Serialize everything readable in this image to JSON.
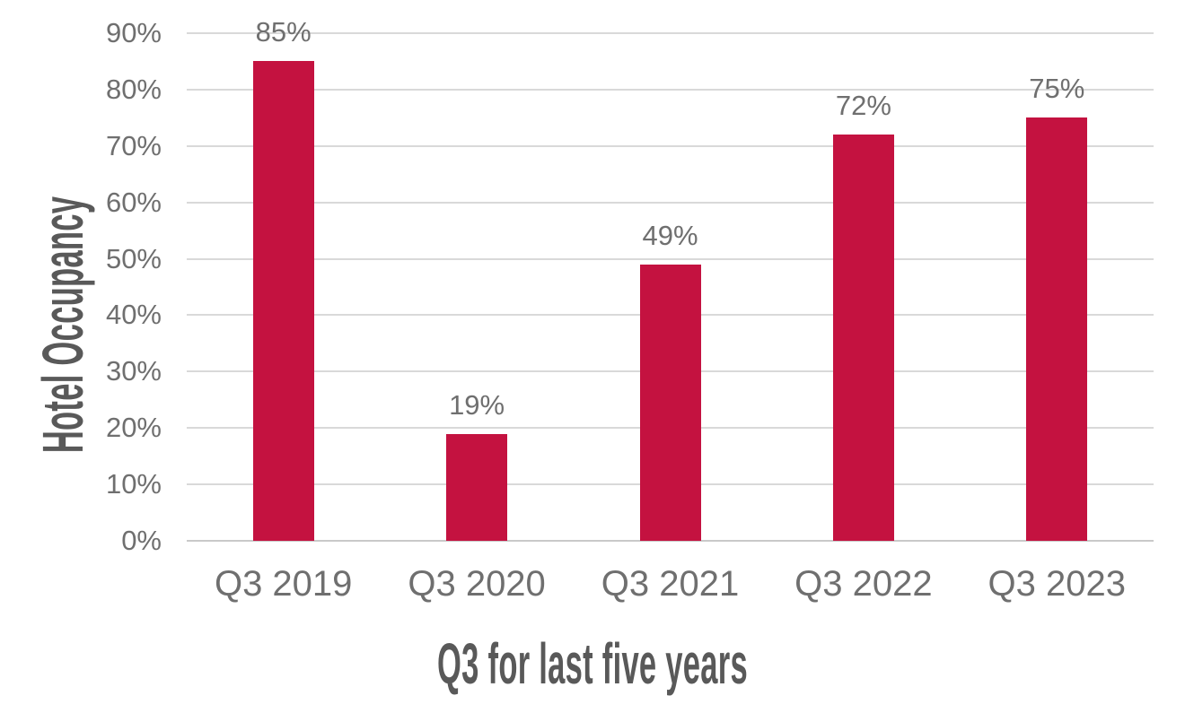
{
  "chart_data": {
    "type": "bar",
    "categories": [
      "Q3 2019",
      "Q3 2020",
      "Q3 2021",
      "Q3 2022",
      "Q3 2023"
    ],
    "values": [
      85,
      19,
      49,
      72,
      75
    ],
    "data_labels": [
      "85%",
      "19%",
      "49%",
      "72%",
      "75%"
    ],
    "title": "",
    "xlabel": "Q3 for last five years",
    "ylabel": "Hotel Occupancy",
    "ylim": [
      0,
      90
    ],
    "y_tick_step": 10,
    "y_ticks": [
      {
        "value": 0,
        "label": "0%"
      },
      {
        "value": 10,
        "label": "10%"
      },
      {
        "value": 20,
        "label": "20%"
      },
      {
        "value": 30,
        "label": "30%"
      },
      {
        "value": 40,
        "label": "40%"
      },
      {
        "value": 50,
        "label": "50%"
      },
      {
        "value": 60,
        "label": "60%"
      },
      {
        "value": 70,
        "label": "70%"
      },
      {
        "value": 80,
        "label": "80%"
      },
      {
        "value": 90,
        "label": "90%"
      }
    ],
    "grid": true,
    "legend": false,
    "colors": {
      "bar": "#C41240",
      "gridline": "#D9D9D9",
      "axis_line": "#C9C9C9",
      "tick_label": "#6F6F6F",
      "axis_title": "#595959",
      "background": "#FFFFFF"
    }
  }
}
